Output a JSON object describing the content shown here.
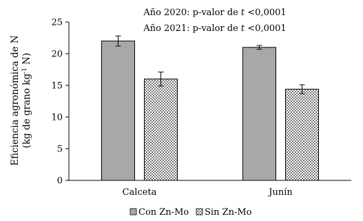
{
  "chart_data": {
    "type": "bar",
    "categories": [
      "Calceta",
      "Junín"
    ],
    "series": [
      {
        "name": "Con Zn-Mo",
        "values": [
          22.0,
          21.0
        ],
        "errors": [
          0.8,
          0.3
        ],
        "color": "#a8a8a8"
      },
      {
        "name": "Sin Zn-Mo",
        "values": [
          16.0,
          14.4
        ],
        "errors": [
          1.1,
          0.7
        ],
        "color": "#dcdcdc"
      }
    ],
    "ylabel_line1": "Eficiencia agronómica de N",
    "ylabel_line2_pre": "(kg de grano kg",
    "ylabel_line2_sup": "-1",
    "ylabel_line2_post": " N)",
    "yticks": [
      0,
      5,
      10,
      15,
      20,
      25
    ],
    "ylim": [
      0,
      25
    ],
    "annotations": [
      {
        "pre": "Año 2020: p-valor de ",
        "italic": "t",
        "post": " <0,0001"
      },
      {
        "pre": "Año 2021: p-valor de ",
        "italic": "t",
        "post": " <0,0001"
      }
    ],
    "legend_placement": "bottom",
    "grid": false
  }
}
